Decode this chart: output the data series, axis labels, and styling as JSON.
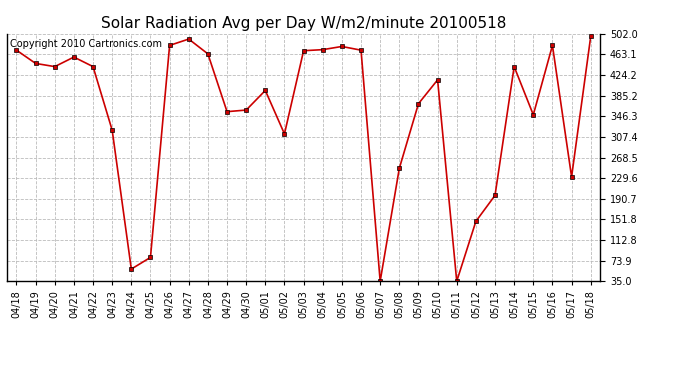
{
  "title": "Solar Radiation Avg per Day W/m2/minute 20100518",
  "copyright": "Copyright 2010 Cartronics.com",
  "labels": [
    "04/18",
    "04/19",
    "04/20",
    "04/21",
    "04/22",
    "04/23",
    "04/24",
    "04/25",
    "04/26",
    "04/27",
    "04/28",
    "04/29",
    "04/30",
    "05/01",
    "05/02",
    "05/03",
    "05/04",
    "05/05",
    "05/06",
    "05/07",
    "05/08",
    "05/09",
    "05/10",
    "05/11",
    "05/12",
    "05/13",
    "05/14",
    "05/15",
    "05/16",
    "05/17",
    "05/18"
  ],
  "values": [
    471,
    446,
    440,
    458,
    440,
    320,
    58,
    80,
    480,
    492,
    464,
    355,
    358,
    395,
    313,
    470,
    472,
    478,
    471,
    35,
    248,
    370,
    415,
    35,
    148,
    197,
    440,
    349,
    480,
    232,
    497
  ],
  "line_color": "#cc0000",
  "marker": "s",
  "marker_size": 3,
  "bg_color": "#ffffff",
  "plot_bg_color": "#ffffff",
  "grid_color": "#bbbbbb",
  "ylim": [
    35.0,
    502.0
  ],
  "yticks": [
    35.0,
    73.9,
    112.8,
    151.8,
    190.7,
    229.6,
    268.5,
    307.4,
    346.3,
    385.2,
    424.2,
    463.1,
    502.0
  ],
  "title_fontsize": 11,
  "copyright_fontsize": 7,
  "tick_fontsize": 7
}
